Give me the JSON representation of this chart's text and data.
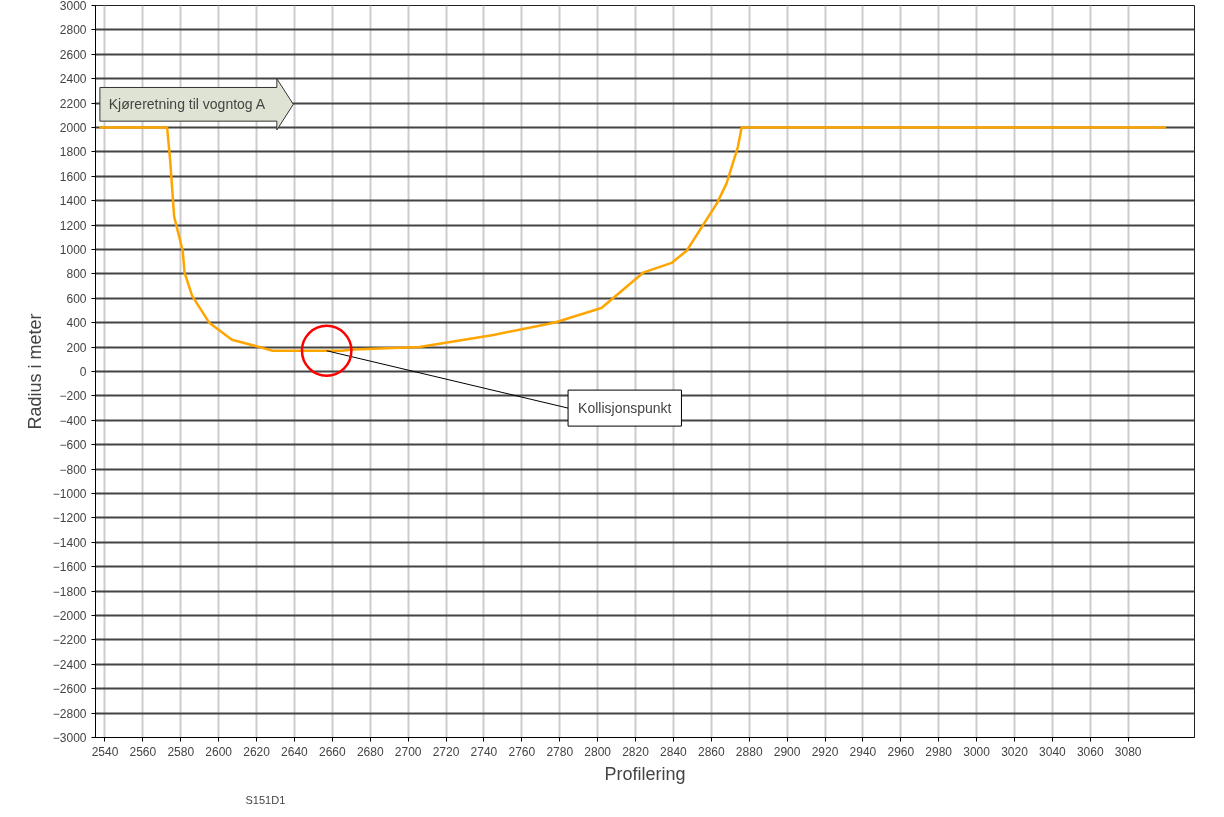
{
  "chart_data": {
    "type": "line",
    "xlabel": "Profilering",
    "ylabel": "Radius i meter",
    "xlim": [
      2535,
      3115
    ],
    "ylim": [
      -3000,
      3000
    ],
    "xticks": [
      2540,
      2560,
      2580,
      2600,
      2620,
      2640,
      2660,
      2680,
      2700,
      2720,
      2740,
      2760,
      2780,
      2800,
      2820,
      2840,
      2860,
      2880,
      2900,
      2920,
      2940,
      2960,
      2980,
      3000,
      3020,
      3040,
      3060,
      3080
    ],
    "yticks": [
      -3000,
      -2800,
      -2600,
      -2400,
      -2200,
      -2000,
      -1800,
      -1600,
      -1400,
      -1200,
      -1000,
      -800,
      -600,
      -400,
      -200,
      0,
      200,
      400,
      600,
      800,
      1000,
      1200,
      1400,
      1600,
      1800,
      2000,
      2200,
      2400,
      2600,
      2800,
      3000
    ],
    "grid": true,
    "marker": "none",
    "line_style": "solid",
    "series": [
      {
        "color": "#ffa500",
        "x": [
          2537,
          2572.8,
          2574.4,
          2576.5,
          2581,
          2582,
          2586,
          2595,
          2607,
          2621.6,
          2628.5,
          2665,
          2671,
          2706,
          2745,
          2777,
          2802,
          2824,
          2839,
          2847,
          2863,
          2868,
          2874,
          2876,
          3100
        ],
        "values": [
          2000,
          2000,
          1730,
          1270,
          990,
          810,
          620,
          400,
          260,
          200,
          170,
          170,
          180,
          200,
          300,
          400,
          520,
          810,
          890,
          990,
          1380,
          1540,
          1840,
          2000,
          2000
        ]
      }
    ],
    "annotations": [
      "Kjøreretning til vogntog A",
      {
        "text": "Kollisjonspunkt",
        "x": 2657,
        "y": 170
      },
      "S151D1"
    ]
  }
}
